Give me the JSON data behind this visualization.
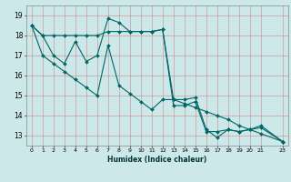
{
  "xlabel": "Humidex (Indice chaleur)",
  "bg_color": "#cce8e8",
  "grid_color": "#aaaacc",
  "line_color": "#006666",
  "xlim": [
    -0.5,
    23.5
  ],
  "ylim": [
    12.5,
    19.5
  ],
  "xticks": [
    0,
    1,
    2,
    3,
    4,
    5,
    6,
    7,
    8,
    9,
    10,
    11,
    12,
    13,
    14,
    15,
    16,
    17,
    18,
    19,
    20,
    21,
    23
  ],
  "yticks": [
    13,
    14,
    15,
    16,
    17,
    18,
    19
  ],
  "line1_x": [
    0,
    1,
    2,
    3,
    4,
    5,
    6,
    7,
    8,
    9,
    10,
    11,
    12,
    13,
    14,
    15,
    16,
    17,
    18,
    19,
    20,
    21,
    23
  ],
  "line1_y": [
    18.5,
    18.0,
    18.0,
    18.0,
    18.0,
    18.0,
    18.0,
    18.2,
    18.2,
    18.2,
    18.2,
    18.2,
    18.3,
    14.5,
    14.5,
    14.7,
    13.2,
    13.2,
    13.3,
    13.2,
    13.3,
    13.4,
    12.7
  ],
  "line2_x": [
    0,
    1,
    2,
    3,
    4,
    5,
    6,
    7,
    8,
    9,
    10,
    11,
    12,
    13,
    14,
    15,
    16,
    17,
    18,
    19,
    20,
    21,
    23
  ],
  "line2_y": [
    18.5,
    18.0,
    17.0,
    16.6,
    17.7,
    16.7,
    17.0,
    18.85,
    18.65,
    18.2,
    18.2,
    18.2,
    18.3,
    14.8,
    14.8,
    14.9,
    13.3,
    12.9,
    13.3,
    13.2,
    13.3,
    13.5,
    12.7
  ],
  "line3_x": [
    0,
    1,
    2,
    3,
    4,
    5,
    6,
    7,
    8,
    9,
    10,
    11,
    12,
    13,
    14,
    15,
    16,
    17,
    18,
    19,
    20,
    21,
    23
  ],
  "line3_y": [
    18.5,
    17.0,
    16.6,
    16.2,
    15.8,
    15.4,
    15.0,
    17.5,
    15.5,
    15.1,
    14.7,
    14.3,
    14.8,
    14.8,
    14.6,
    14.4,
    14.2,
    14.0,
    13.8,
    13.5,
    13.3,
    13.1,
    12.7
  ]
}
